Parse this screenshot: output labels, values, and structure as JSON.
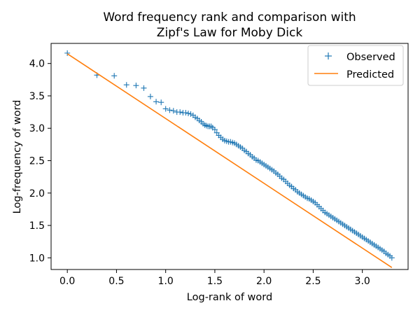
{
  "chart_data": {
    "type": "scatter",
    "title": "Word frequency rank and comparison with Zipf's Law for Moby Dick",
    "title_lines": [
      "Word frequency rank and comparison with",
      "Zipf's Law for Moby Dick"
    ],
    "xlabel": "Log-rank of word",
    "ylabel": "Log-frequency of word",
    "xlim": [
      -0.165,
      3.465
    ],
    "ylim": [
      0.82,
      4.31
    ],
    "xticks": [
      0.0,
      0.5,
      1.0,
      1.5,
      2.0,
      2.5,
      3.0
    ],
    "xtick_labels": [
      "0.0",
      "0.5",
      "1.0",
      "1.5",
      "2.0",
      "2.5",
      "3.0"
    ],
    "yticks": [
      1.0,
      1.5,
      2.0,
      2.5,
      3.0,
      3.5,
      4.0
    ],
    "ytick_labels": [
      "1.0",
      "1.5",
      "2.0",
      "2.5",
      "3.0",
      "3.5",
      "4.0"
    ],
    "grid": false,
    "legend": {
      "position": "top-right"
    },
    "series": [
      {
        "name": "Observed",
        "style": "marker-plus",
        "color": "#1f77b4",
        "points": [
          [
            0.0,
            4.16
          ],
          [
            0.301,
            3.82
          ],
          [
            0.477,
            3.81
          ],
          [
            0.602,
            3.67
          ],
          [
            0.699,
            3.66
          ],
          [
            0.778,
            3.62
          ],
          [
            0.845,
            3.49
          ],
          [
            0.903,
            3.41
          ],
          [
            0.954,
            3.4
          ],
          [
            1.0,
            3.3
          ],
          [
            1.041,
            3.28
          ],
          [
            1.079,
            3.27
          ],
          [
            1.114,
            3.25
          ],
          [
            1.146,
            3.25
          ],
          [
            1.176,
            3.24
          ],
          [
            1.204,
            3.24
          ],
          [
            1.23,
            3.23
          ],
          [
            1.255,
            3.22
          ],
          [
            1.279,
            3.2
          ],
          [
            1.301,
            3.17
          ],
          [
            1.322,
            3.15
          ],
          [
            1.342,
            3.12
          ],
          [
            1.362,
            3.1
          ],
          [
            1.38,
            3.07
          ],
          [
            1.398,
            3.05
          ],
          [
            1.415,
            3.04
          ],
          [
            1.431,
            3.03
          ],
          [
            1.447,
            3.03
          ],
          [
            1.462,
            3.03
          ],
          [
            1.477,
            3.01
          ],
          [
            1.5,
            2.98
          ],
          [
            1.52,
            2.93
          ],
          [
            1.54,
            2.89
          ],
          [
            1.56,
            2.86
          ],
          [
            1.58,
            2.83
          ],
          [
            1.6,
            2.81
          ],
          [
            1.62,
            2.8
          ],
          [
            1.64,
            2.79
          ],
          [
            1.66,
            2.79
          ],
          [
            1.68,
            2.78
          ],
          [
            1.7,
            2.77
          ],
          [
            1.72,
            2.75
          ],
          [
            1.74,
            2.73
          ],
          [
            1.76,
            2.71
          ],
          [
            1.78,
            2.69
          ],
          [
            1.8,
            2.66
          ],
          [
            1.82,
            2.64
          ],
          [
            1.84,
            2.61
          ],
          [
            1.86,
            2.59
          ],
          [
            1.88,
            2.56
          ],
          [
            1.9,
            2.54
          ],
          [
            1.92,
            2.51
          ],
          [
            1.94,
            2.5
          ],
          [
            1.96,
            2.48
          ],
          [
            1.98,
            2.46
          ],
          [
            2.0,
            2.44
          ],
          [
            2.02,
            2.42
          ],
          [
            2.04,
            2.4
          ],
          [
            2.06,
            2.38
          ],
          [
            2.08,
            2.36
          ],
          [
            2.1,
            2.34
          ],
          [
            2.12,
            2.31
          ],
          [
            2.14,
            2.29
          ],
          [
            2.16,
            2.26
          ],
          [
            2.18,
            2.23
          ],
          [
            2.2,
            2.21
          ],
          [
            2.22,
            2.18
          ],
          [
            2.24,
            2.15
          ],
          [
            2.26,
            2.12
          ],
          [
            2.28,
            2.1
          ],
          [
            2.3,
            2.07
          ],
          [
            2.32,
            2.05
          ],
          [
            2.34,
            2.02
          ],
          [
            2.36,
            2.0
          ],
          [
            2.38,
            1.98
          ],
          [
            2.4,
            1.96
          ],
          [
            2.42,
            1.94
          ],
          [
            2.44,
            1.92
          ],
          [
            2.46,
            1.91
          ],
          [
            2.48,
            1.89
          ],
          [
            2.5,
            1.87
          ],
          [
            2.52,
            1.85
          ],
          [
            2.54,
            1.82
          ],
          [
            2.56,
            1.79
          ],
          [
            2.58,
            1.76
          ],
          [
            2.6,
            1.73
          ],
          [
            2.62,
            1.7
          ],
          [
            2.64,
            1.68
          ],
          [
            2.66,
            1.66
          ],
          [
            2.68,
            1.64
          ],
          [
            2.7,
            1.62
          ],
          [
            2.72,
            1.6
          ],
          [
            2.74,
            1.58
          ],
          [
            2.76,
            1.56
          ],
          [
            2.78,
            1.54
          ],
          [
            2.8,
            1.52
          ],
          [
            2.82,
            1.5
          ],
          [
            2.84,
            1.48
          ],
          [
            2.86,
            1.46
          ],
          [
            2.88,
            1.44
          ],
          [
            2.9,
            1.42
          ],
          [
            2.92,
            1.4
          ],
          [
            2.94,
            1.38
          ],
          [
            2.96,
            1.36
          ],
          [
            2.98,
            1.34
          ],
          [
            3.0,
            1.32
          ],
          [
            3.02,
            1.3
          ],
          [
            3.04,
            1.28
          ],
          [
            3.06,
            1.26
          ],
          [
            3.08,
            1.24
          ],
          [
            3.1,
            1.22
          ],
          [
            3.12,
            1.2
          ],
          [
            3.14,
            1.18
          ],
          [
            3.16,
            1.16
          ],
          [
            3.18,
            1.14
          ],
          [
            3.2,
            1.12
          ],
          [
            3.22,
            1.1
          ],
          [
            3.24,
            1.07
          ],
          [
            3.26,
            1.05
          ],
          [
            3.28,
            1.03
          ],
          [
            3.3,
            1.0
          ]
        ]
      },
      {
        "name": "Predicted",
        "style": "line",
        "color": "#ff7f0e",
        "points": [
          [
            0.0,
            4.15
          ],
          [
            3.3,
            0.85
          ]
        ]
      }
    ]
  }
}
